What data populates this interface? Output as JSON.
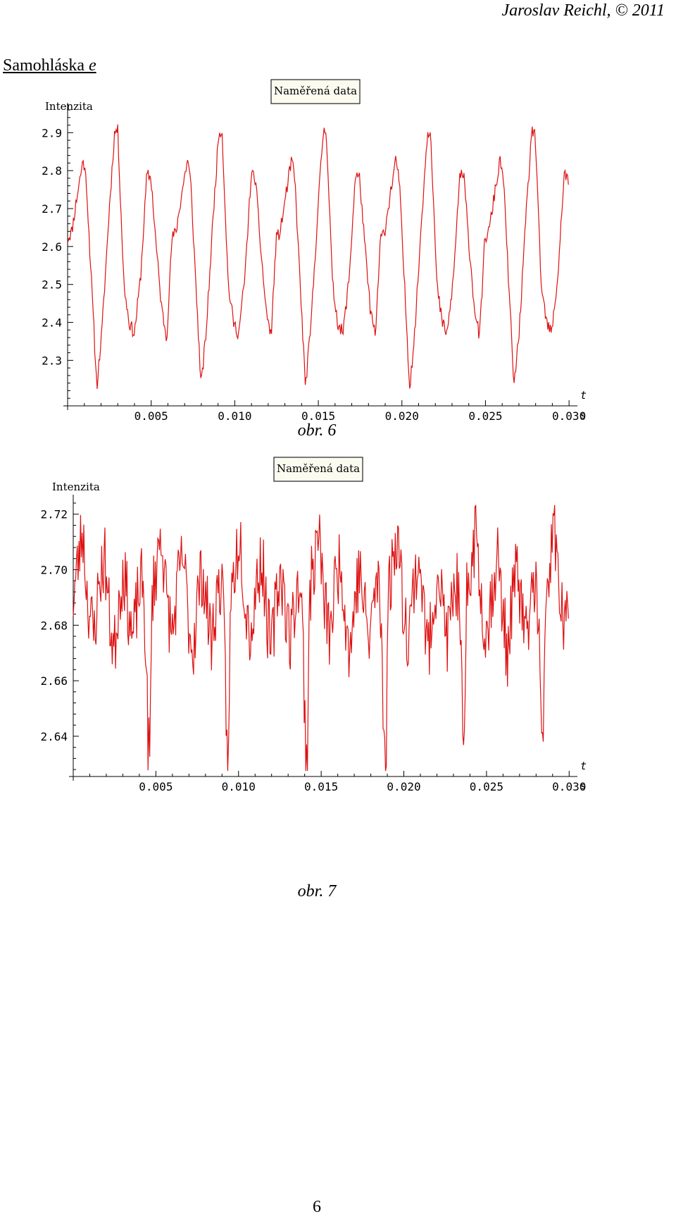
{
  "header": {
    "author": "Jaroslav Reichl, © 2011"
  },
  "section": {
    "title_prefix": "Samohláska ",
    "title_letter": "e"
  },
  "page_number": "6",
  "chart_data": [
    {
      "type": "line",
      "title": "Naměřená data",
      "ylabel": "Intenzita",
      "xlabel": "t",
      "xunit": "s",
      "caption": "obr. 6",
      "color": "#dd1111",
      "xlim": [
        0,
        0.0305
      ],
      "ylim": [
        2.18,
        2.96
      ],
      "xticks": [
        0.005,
        0.01,
        0.015,
        0.02,
        0.025,
        0.03
      ],
      "xtick_labels": [
        "0.005",
        "0.010",
        "0.015",
        "0.020",
        "0.025",
        "0.030"
      ],
      "yticks": [
        2.3,
        2.4,
        2.5,
        2.6,
        2.7,
        2.8,
        2.9
      ],
      "ytick_labels": [
        "2.3",
        "2.4",
        "2.5",
        "2.6",
        "2.7",
        "2.8",
        "2.9"
      ],
      "period": 0.00624,
      "seed": 11,
      "template": [
        [
          0.0,
          2.62
        ],
        [
          0.04,
          2.64
        ],
        [
          0.1,
          2.75
        ],
        [
          0.15,
          2.83
        ],
        [
          0.18,
          2.77
        ],
        [
          0.23,
          2.5
        ],
        [
          0.28,
          2.23
        ],
        [
          0.33,
          2.38
        ],
        [
          0.4,
          2.7
        ],
        [
          0.45,
          2.9
        ],
        [
          0.48,
          2.91
        ],
        [
          0.54,
          2.5
        ],
        [
          0.59,
          2.4
        ],
        [
          0.64,
          2.37
        ],
        [
          0.7,
          2.52
        ],
        [
          0.76,
          2.79
        ],
        [
          0.8,
          2.78
        ],
        [
          0.85,
          2.6
        ],
        [
          0.9,
          2.44
        ],
        [
          0.95,
          2.36
        ],
        [
          1.0,
          2.62
        ]
      ],
      "noise": 0.018
    },
    {
      "type": "line",
      "title": "Naměřená data",
      "ylabel": "Intenzita",
      "xlabel": "t",
      "xunit": "s",
      "caption": "obr. 7",
      "color": "#dd1111",
      "xlim": [
        0,
        0.0305
      ],
      "ylim": [
        2.6255,
        2.7245
      ],
      "xticks": [
        0.005,
        0.01,
        0.015,
        0.02,
        0.025,
        0.03
      ],
      "xtick_labels": [
        "0.005",
        "0.010",
        "0.015",
        "0.020",
        "0.025",
        "0.030"
      ],
      "yticks": [
        2.64,
        2.66,
        2.68,
        2.7,
        2.72
      ],
      "ytick_labels": [
        "2.64",
        "2.66",
        "2.68",
        "2.70",
        "2.72"
      ],
      "period": 0.00476,
      "seed": 23,
      "template": [
        [
          0.0,
          2.69
        ],
        [
          0.05,
          2.7
        ],
        [
          0.12,
          2.715
        ],
        [
          0.18,
          2.69
        ],
        [
          0.26,
          2.676
        ],
        [
          0.33,
          2.695
        ],
        [
          0.4,
          2.705
        ],
        [
          0.46,
          2.683
        ],
        [
          0.52,
          2.67
        ],
        [
          0.58,
          2.69
        ],
        [
          0.64,
          2.7
        ],
        [
          0.7,
          2.686
        ],
        [
          0.76,
          2.674
        ],
        [
          0.82,
          2.69
        ],
        [
          0.88,
          2.696
        ],
        [
          0.92,
          2.675
        ],
        [
          0.95,
          2.64
        ],
        [
          0.975,
          2.63
        ],
        [
          1.0,
          2.69
        ]
      ],
      "noise": 0.013
    }
  ]
}
